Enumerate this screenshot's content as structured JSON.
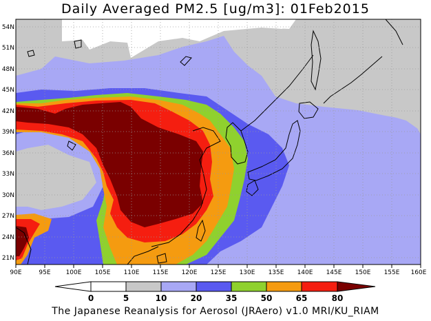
{
  "title": "Daily Averaged PM2.5 [ug/m3]: 01Feb2015",
  "footer": "The Japanese Reanalysis for Aerosol (JRAero) v1.0 MRI/KU_RIAM",
  "map": {
    "lon_range": [
      90,
      160
    ],
    "lat_range": [
      20,
      55
    ],
    "lon_ticks": [
      "90E",
      "95E",
      "100E",
      "105E",
      "110E",
      "115E",
      "120E",
      "125E",
      "130E",
      "135E",
      "140E",
      "145E",
      "150E",
      "155E",
      "160E"
    ],
    "lat_ticks": [
      "21N",
      "24N",
      "27N",
      "30N",
      "33N",
      "36N",
      "39N",
      "42N",
      "45N",
      "48N",
      "51N",
      "54N"
    ],
    "grid": true,
    "coastline_color": "#000000"
  },
  "colorbar": {
    "levels": [
      "0",
      "5",
      "10",
      "20",
      "35",
      "50",
      "65",
      "80"
    ],
    "colors": [
      "#ffffff",
      "#c8c8c8",
      "#a8a8f5",
      "#5a5af0",
      "#8fd12e",
      "#f59b10",
      "#f51e10",
      "#7a0000"
    ]
  }
}
